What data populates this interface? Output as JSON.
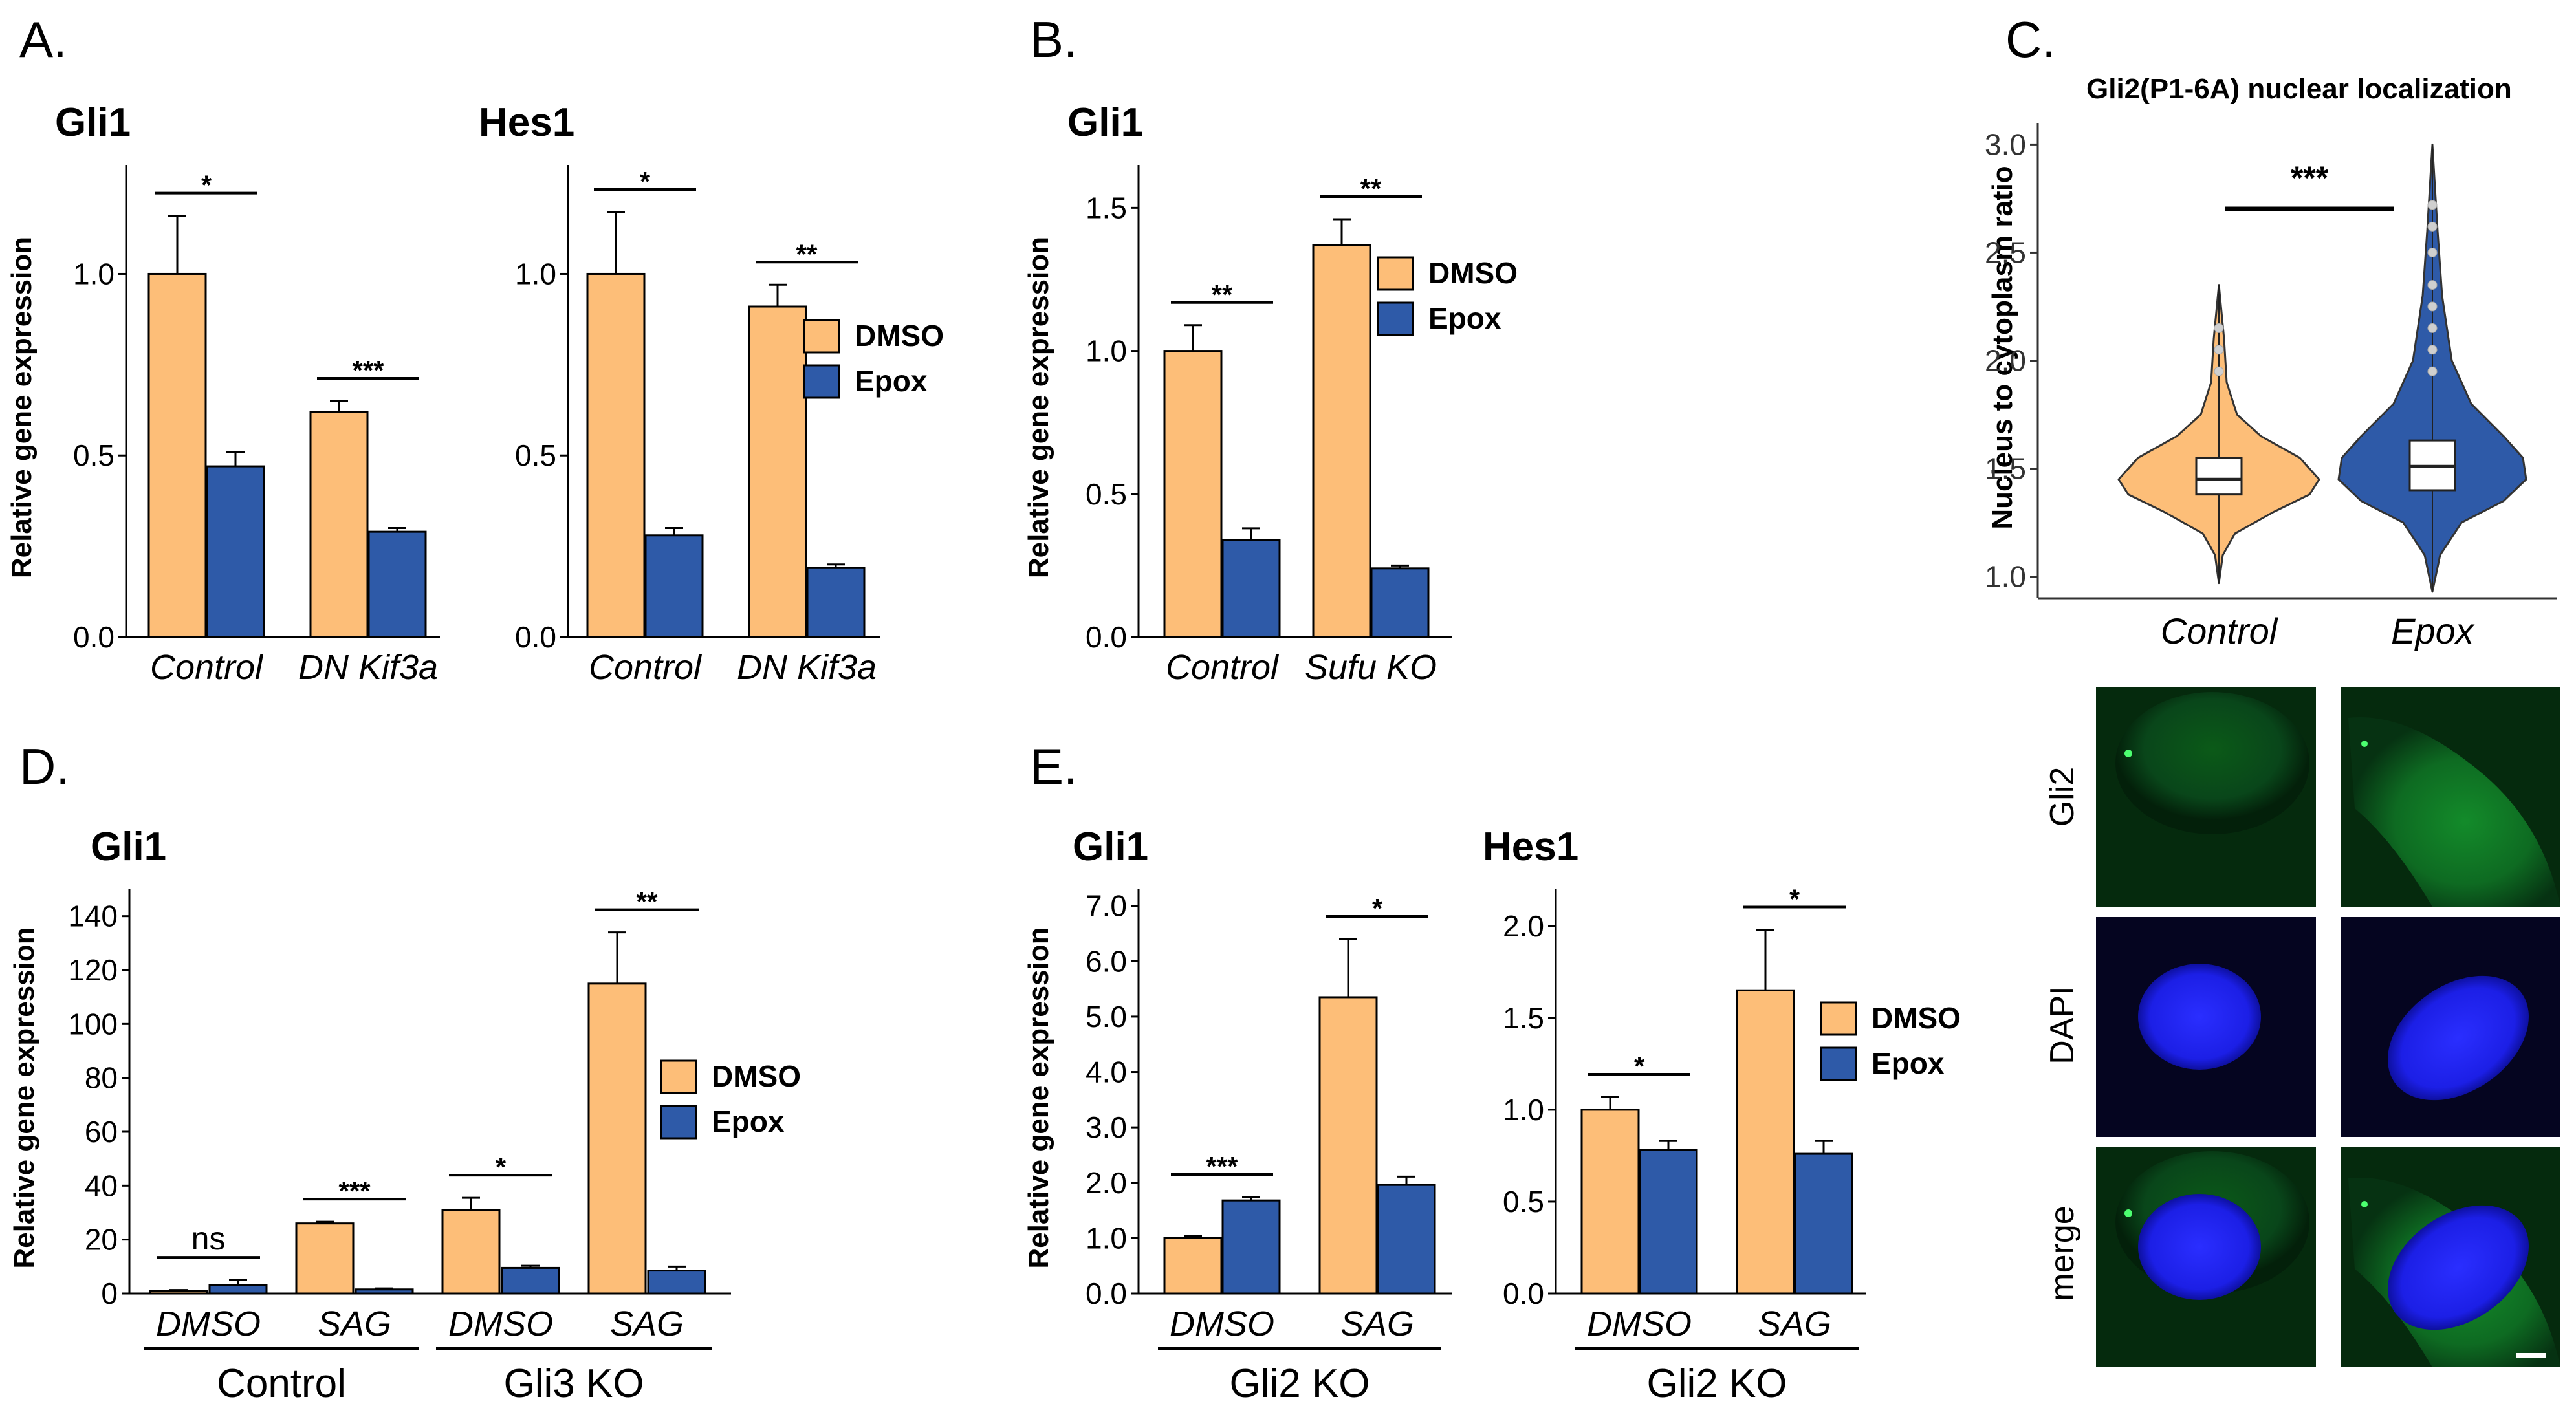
{
  "colors": {
    "dmso": "#FDBE78",
    "epox": "#2E5AA8",
    "gfp": "#0C8A26",
    "dapi": "#1E22F2",
    "axis": "#000000"
  },
  "legend": {
    "dmso": "DMSO",
    "epox": "Epox"
  },
  "chart_data": [
    {
      "panel": "A.",
      "title": "Gli1",
      "type": "bar",
      "ylabel": "Relative gene expression",
      "ylim": [
        0,
        1.3
      ],
      "yticks": [
        "0.0",
        "0.5",
        "1.0"
      ],
      "categories": [
        "Control",
        "DN Kif3a"
      ],
      "series": [
        {
          "name": "DMSO",
          "values": [
            1.0,
            0.62
          ],
          "errors": [
            0.16,
            0.03
          ]
        },
        {
          "name": "Epox",
          "values": [
            0.47,
            0.29
          ],
          "errors": [
            0.04,
            0.01
          ]
        }
      ],
      "significance": [
        "*",
        "***"
      ]
    },
    {
      "panel": "",
      "title": "Hes1",
      "type": "bar",
      "ylabel": "",
      "ylim": [
        0,
        1.3
      ],
      "yticks": [
        "0.0",
        "0.5",
        "1.0"
      ],
      "categories": [
        "Control",
        "DN Kif3a"
      ],
      "series": [
        {
          "name": "DMSO",
          "values": [
            1.0,
            0.91
          ],
          "errors": [
            0.17,
            0.06
          ]
        },
        {
          "name": "Epox",
          "values": [
            0.28,
            0.19
          ],
          "errors": [
            0.02,
            0.01
          ]
        }
      ],
      "significance": [
        "*",
        "**"
      ],
      "legend": "inside"
    },
    {
      "panel": "B.",
      "title": "Gli1",
      "type": "bar",
      "ylabel": "Relative gene expression",
      "ylim": [
        0,
        1.65
      ],
      "yticks": [
        "0.0",
        "0.5",
        "1.0",
        "1.5"
      ],
      "categories": [
        "Control",
        "Sufu KO"
      ],
      "series": [
        {
          "name": "DMSO",
          "values": [
            1.0,
            1.37
          ],
          "errors": [
            0.09,
            0.09
          ]
        },
        {
          "name": "Epox",
          "values": [
            0.34,
            0.24
          ],
          "errors": [
            0.04,
            0.01
          ]
        }
      ],
      "significance": [
        "**",
        "**"
      ],
      "legend": "inside"
    },
    {
      "panel": "C.",
      "type": "violin",
      "title": "Gli2(P1-6A) nuclear localization",
      "ylabel": "Nucleus to cytoplasm ratio",
      "ylim": [
        0.9,
        3.1
      ],
      "yticks": [
        "1.0",
        "1.5",
        "2.0",
        "2.5",
        "3.0"
      ],
      "categories": [
        "Control",
        "Epox"
      ],
      "boxes": [
        {
          "q1": 1.38,
          "median": 1.45,
          "q3": 1.55,
          "min": 0.97,
          "max": 2.35
        },
        {
          "q1": 1.4,
          "median": 1.51,
          "q3": 1.63,
          "min": 0.93,
          "max": 3.0
        }
      ],
      "significance": [
        "***"
      ]
    },
    {
      "panel": "D.",
      "title": "Gli1",
      "type": "bar",
      "ylabel": "Relative gene expression",
      "ylim": [
        0,
        150
      ],
      "yticks": [
        "0",
        "20",
        "40",
        "60",
        "80",
        "100",
        "120",
        "140"
      ],
      "categories": [
        "DMSO",
        "SAG",
        "DMSO",
        "SAG"
      ],
      "groups": [
        "Control",
        "Gli3 KO"
      ],
      "series": [
        {
          "name": "DMSO",
          "values": [
            1,
            26,
            31,
            115
          ],
          "errors": [
            0.3,
            0.6,
            4.5,
            19
          ]
        },
        {
          "name": "Epox",
          "values": [
            3,
            1.5,
            9.5,
            8.5
          ],
          "errors": [
            2,
            0.4,
            0.8,
            1.5
          ]
        }
      ],
      "significance": [
        "ns",
        "***",
        "*",
        "**"
      ],
      "legend": "inside"
    },
    {
      "panel": "E.",
      "title": "Gli1",
      "type": "bar",
      "ylabel": "Relative gene expression",
      "ylim": [
        0,
        7.3
      ],
      "yticks": [
        "0.0",
        "1.0",
        "2.0",
        "3.0",
        "4.0",
        "5.0",
        "6.0",
        "7.0"
      ],
      "categories": [
        "DMSO",
        "SAG"
      ],
      "groups": [
        "Gli2 KO"
      ],
      "series": [
        {
          "name": "DMSO",
          "values": [
            1.0,
            5.35
          ],
          "errors": [
            0.04,
            1.05
          ]
        },
        {
          "name": "Epox",
          "values": [
            1.68,
            1.96
          ],
          "errors": [
            0.06,
            0.15
          ]
        }
      ],
      "significance": [
        "***",
        "*"
      ]
    },
    {
      "panel": "",
      "title": "Hes1",
      "type": "bar",
      "ylabel": "",
      "ylim": [
        0,
        2.2
      ],
      "yticks": [
        "0.0",
        "0.5",
        "1.0",
        "1.5",
        "2.0"
      ],
      "categories": [
        "DMSO",
        "SAG"
      ],
      "groups": [
        "Gli2 KO"
      ],
      "series": [
        {
          "name": "DMSO",
          "values": [
            1.0,
            1.65
          ],
          "errors": [
            0.07,
            0.33
          ]
        },
        {
          "name": "Epox",
          "values": [
            0.78,
            0.76
          ],
          "errors": [
            0.05,
            0.07
          ]
        }
      ],
      "significance": [
        "*",
        "*"
      ],
      "legend": "inside"
    }
  ],
  "micrographs": {
    "rows": [
      "Gli2",
      "DAPI",
      "merge"
    ]
  }
}
